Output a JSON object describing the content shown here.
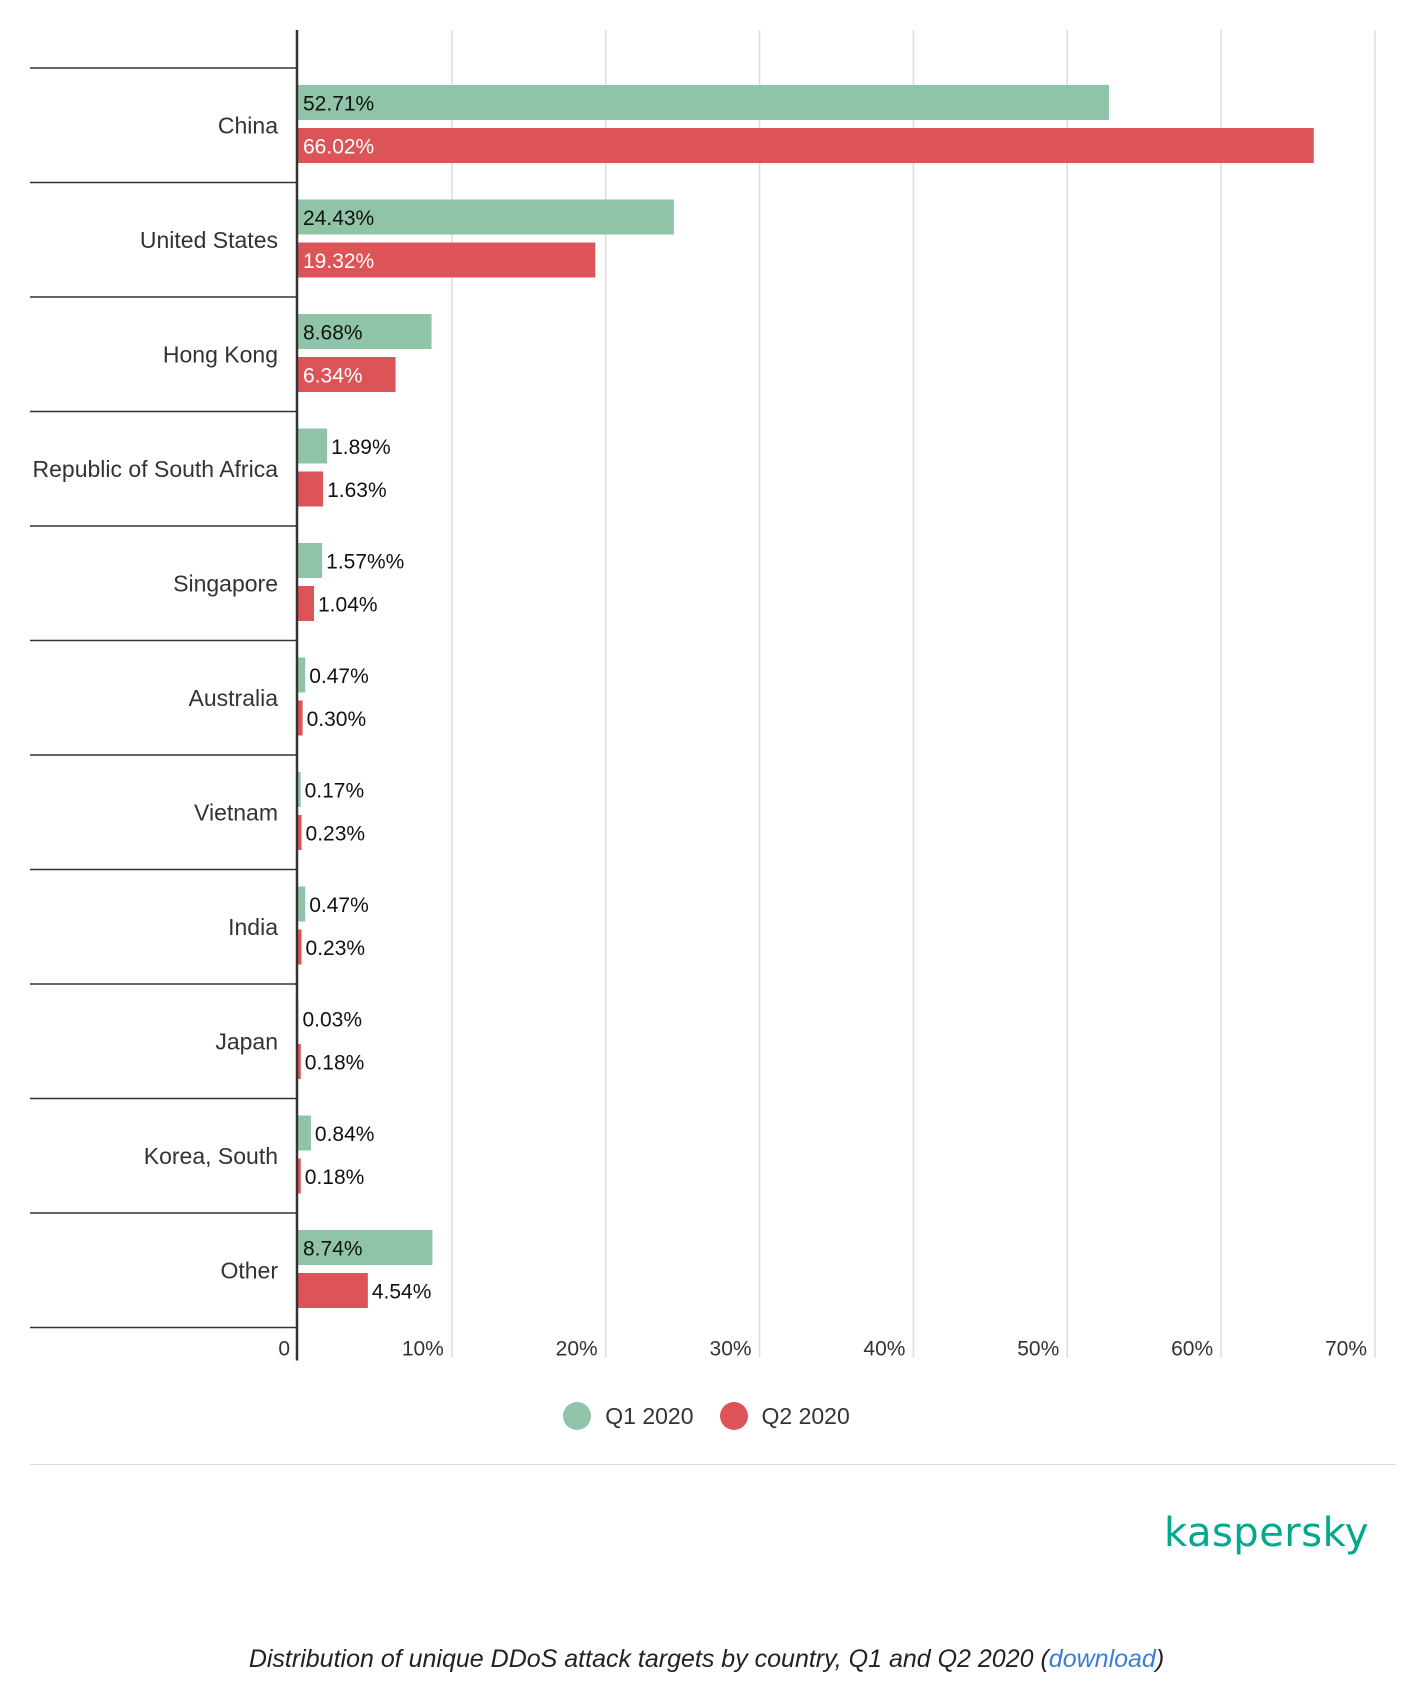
{
  "chart_data": {
    "type": "bar",
    "orientation": "horizontal",
    "categories": [
      "China",
      "United States",
      "Hong Kong",
      "Republic of South Africa",
      "Singapore",
      "Australia",
      "Vietnam",
      "India",
      "Japan",
      "Korea, South",
      "Other"
    ],
    "series": [
      {
        "name": "Q1 2020",
        "color": "#8fc4a8",
        "values": [
          52.71,
          24.43,
          8.68,
          1.89,
          1.57,
          0.47,
          0.17,
          0.47,
          0.03,
          0.84,
          8.74
        ],
        "labels": [
          "52.71%",
          "24.43%",
          "8.68%",
          "1.89%",
          "1.57%%",
          "0.47%",
          "0.17%",
          "0.47%",
          "0.03%",
          "0.84%",
          "8.74%"
        ]
      },
      {
        "name": "Q2 2020",
        "color": "#dd5458",
        "values": [
          66.02,
          19.32,
          6.34,
          1.63,
          1.04,
          0.3,
          0.23,
          0.23,
          0.18,
          0.18,
          4.54
        ],
        "labels": [
          "66.02%",
          "19.32%",
          "6.34%",
          "1.63%",
          "1.04%",
          "0.30%",
          "0.23%",
          "0.23%",
          "0.18%",
          "0.18%",
          "4.54%"
        ]
      }
    ],
    "xlim": [
      0,
      70
    ],
    "xticks": [
      "0",
      "10%",
      "20%",
      "30%",
      "40%",
      "50%",
      "60%",
      "70%"
    ],
    "grid": true,
    "legend_position": "bottom-center"
  },
  "legend": [
    {
      "label": "Q1 2020",
      "color": "#8fc4a8"
    },
    {
      "label": "Q2 2020",
      "color": "#dd5458"
    }
  ],
  "logo": "kaspersky",
  "caption": {
    "text": "Distribution of unique DDoS attack targets by country, Q1 and Q2 2020 (",
    "link": "download",
    "end": ")"
  }
}
